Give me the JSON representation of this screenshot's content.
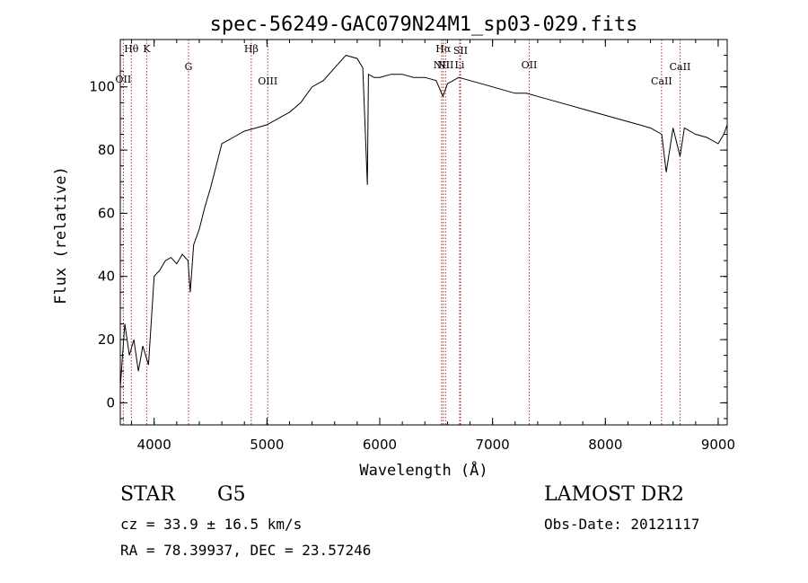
{
  "chart_data": {
    "type": "line",
    "title": "spec-56249-GAC079N24M1_sp03-029.fits",
    "xlabel": "Wavelength (Å)",
    "ylabel": "Flux (relative)",
    "xlim": [
      3700,
      9080
    ],
    "ylim": [
      -7,
      115
    ],
    "x_ticks": [
      4000,
      5000,
      6000,
      7000,
      8000,
      9000
    ],
    "y_ticks": [
      0,
      20,
      40,
      60,
      80,
      100
    ],
    "grid": false,
    "series": [
      {
        "x": [
          3700,
          3740,
          3780,
          3820,
          3860,
          3900,
          3950,
          4000,
          4050,
          4100,
          4150,
          4200,
          4250,
          4300,
          4320,
          4350,
          4400,
          4450,
          4500,
          4550,
          4600,
          4700,
          4800,
          4900,
          5000,
          5100,
          5200,
          5300,
          5400,
          5500,
          5600,
          5700,
          5800,
          5850,
          5890,
          5900,
          5950,
          6000,
          6100,
          6200,
          6300,
          6400,
          6500,
          6560,
          6600,
          6700,
          6800,
          6900,
          7000,
          7100,
          7200,
          7300,
          7400,
          7500,
          7600,
          7700,
          7800,
          7900,
          8000,
          8100,
          8200,
          8300,
          8400,
          8500,
          8540,
          8600,
          8662,
          8700,
          8800,
          8900,
          9000,
          9050,
          9080
        ],
        "y": [
          5,
          25,
          15,
          20,
          10,
          18,
          12,
          40,
          42,
          45,
          46,
          44,
          47,
          45,
          35,
          50,
          55,
          62,
          68,
          75,
          82,
          84,
          86,
          87,
          88,
          90,
          92,
          95,
          100,
          102,
          106,
          110,
          109,
          106,
          69,
          104,
          103,
          103,
          104,
          104,
          103,
          103,
          102,
          97,
          101,
          103,
          102,
          101,
          100,
          99,
          98,
          98,
          97,
          96,
          95,
          94,
          93,
          92,
          91,
          90,
          89,
          88,
          87,
          85,
          73,
          87,
          78,
          87,
          85,
          84,
          82,
          85,
          88
        ]
      }
    ],
    "lines": [
      {
        "label": "Hθ",
        "x": 3798
      },
      {
        "label": "OII",
        "x": 3727
      },
      {
        "label": "K",
        "x": 3934
      },
      {
        "label": "G",
        "x": 4305
      },
      {
        "label": "Hβ",
        "x": 4861
      },
      {
        "label": "OIII",
        "x": 5007
      },
      {
        "label": "Hα",
        "x": 6563
      },
      {
        "label": "NII",
        "x": 6548
      },
      {
        "label": "NII",
        "x": 6583
      },
      {
        "label": "SII",
        "x": 6716
      },
      {
        "label": "Li",
        "x": 6708
      },
      {
        "label": "OII",
        "x": 7325
      },
      {
        "label": "CaII",
        "x": 8498
      },
      {
        "label": "CaII",
        "x": 8662
      }
    ]
  },
  "info": {
    "class": "STAR",
    "subclass": "G5",
    "survey": "LAMOST DR2",
    "cz": "cz = 33.9 ± 16.5 km/s",
    "obs_date": "Obs-Date: 20121117",
    "radec": "RA =  78.39937, DEC =  23.57246"
  },
  "colors": {
    "line": "#000000",
    "marker": "#a83232"
  }
}
